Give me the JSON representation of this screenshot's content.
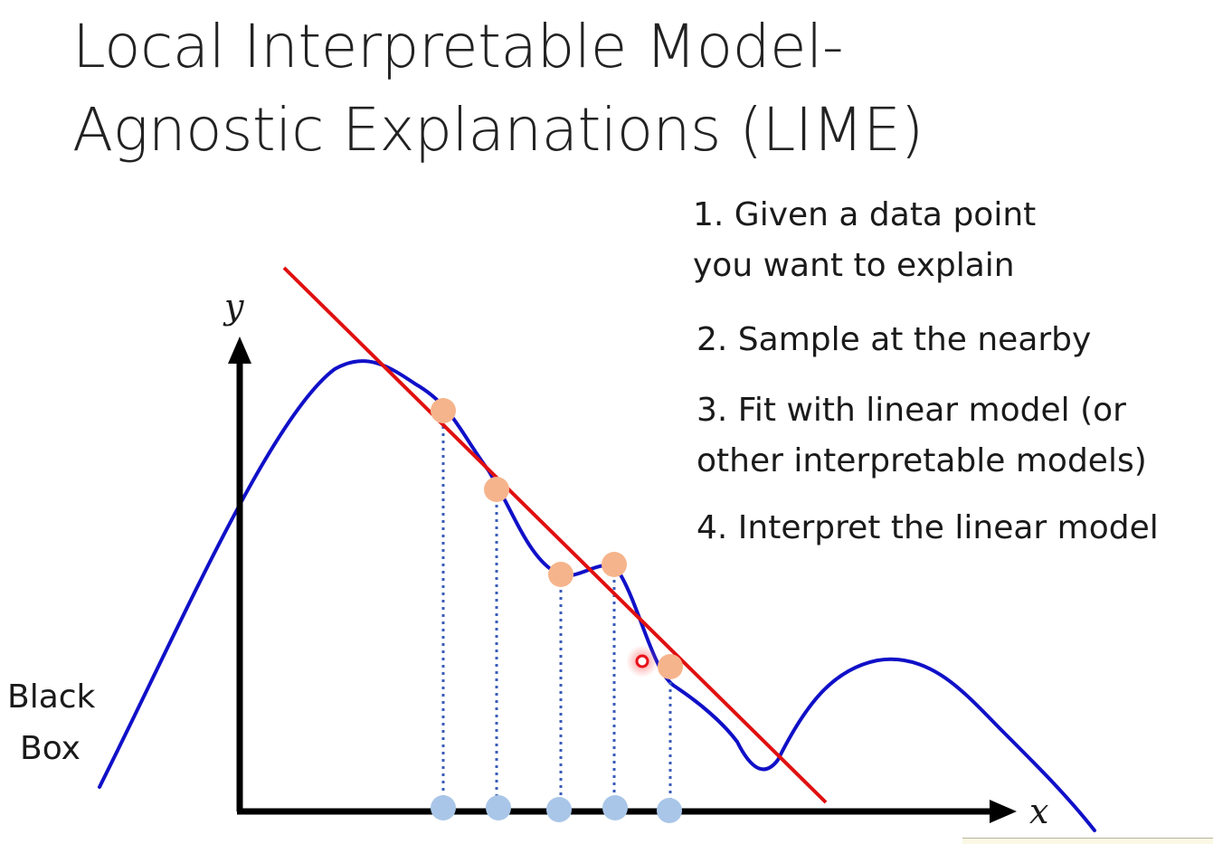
{
  "title": {
    "line1": "Local Interpretable Model-",
    "line2": "Agnostic Explanations (LIME)"
  },
  "steps": [
    {
      "line1": "1. Given a data point",
      "line2": "you want to explain"
    },
    {
      "line1": "2. Sample at the nearby"
    },
    {
      "line1": "3. Fit with linear model (or",
      "line2": "other interpretable models)"
    },
    {
      "line1": "4. Interpret the linear model"
    }
  ],
  "black_box": {
    "line1": "Black",
    "line2": "Box"
  },
  "axes": {
    "x_label": "x",
    "y_label": "y"
  },
  "colors": {
    "black_box_curve": "#1010c8",
    "linear_model": "#e01010",
    "sample_point": "#f6b48c",
    "projected_point": "#a9c6e8",
    "explained_point": "#e8101a",
    "axis": "#000000",
    "projection_line": "#3a5cb8"
  }
}
